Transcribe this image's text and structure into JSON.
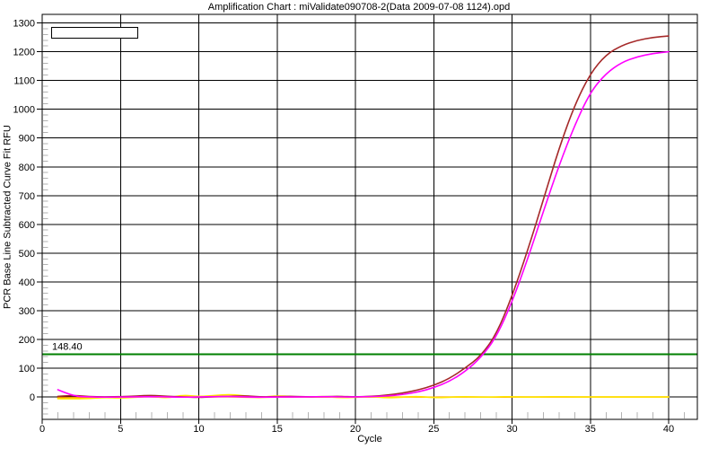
{
  "window": {
    "title": "Amplification Chart : miValidate090708-2(Data 2009-07-08 1124).opd"
  },
  "chart_data": {
    "type": "line",
    "title": "Amplification Chart : miValidate090708-2(Data 2009-07-08 1124).opd",
    "xlabel": "Cycle",
    "ylabel": "PCR Base Line Subtracted Curve Fit RFU",
    "xlim": [
      0,
      41.83
    ],
    "ylim": [
      -78,
      1330
    ],
    "x_ticks": [
      0,
      5,
      10,
      15,
      20,
      25,
      30,
      35,
      40
    ],
    "y_ticks": [
      0,
      100,
      200,
      300,
      400,
      500,
      600,
      700,
      800,
      900,
      1000,
      1100,
      1200,
      1300
    ],
    "x_minor_step": 1,
    "y_minor_step": 20,
    "grid": true,
    "legend_position": "top-left",
    "legend_entries": [],
    "x": [
      1,
      2,
      3,
      4,
      5,
      6,
      7,
      8,
      9,
      10,
      11,
      12,
      13,
      14,
      15,
      16,
      17,
      18,
      19,
      20,
      21,
      22,
      23,
      24,
      25,
      26,
      27,
      28,
      29,
      30,
      31,
      32,
      33,
      34,
      35,
      36,
      37,
      38,
      39,
      40
    ],
    "series": [
      {
        "name": "amplifying-well-dark-red",
        "color": "#a52929",
        "values": [
          2,
          6,
          1,
          0,
          1,
          3,
          6,
          2,
          0,
          -2,
          1,
          2,
          4,
          0,
          1,
          2,
          0,
          1,
          2,
          0,
          2,
          6,
          13,
          24,
          40,
          64,
          100,
          142,
          218,
          350,
          510,
          685,
          865,
          1015,
          1125,
          1190,
          1222,
          1240,
          1250,
          1255
        ]
      },
      {
        "name": "amplifying-well-magenta",
        "color": "#ff00ff",
        "values": [
          25,
          2,
          0,
          -1,
          0,
          0,
          1,
          0,
          -1,
          0,
          1,
          2,
          0,
          -1,
          0,
          0,
          0,
          1,
          0,
          0,
          1,
          3,
          8,
          17,
          32,
          54,
          88,
          136,
          208,
          330,
          480,
          645,
          805,
          945,
          1060,
          1125,
          1163,
          1183,
          1194,
          1200
        ]
      },
      {
        "name": "flat-well-yellow",
        "color": "#ffe600",
        "values": [
          -6,
          -7,
          -5,
          -2,
          -4,
          -1,
          2,
          -4,
          7,
          1,
          5,
          9,
          3,
          -1,
          4,
          1,
          -1,
          2,
          -3,
          -1,
          1,
          -3,
          -1,
          2,
          -3,
          -1,
          1,
          -1,
          0,
          1,
          -1,
          0,
          1,
          0,
          0,
          0,
          0,
          0,
          0,
          0
        ]
      },
      {
        "name": "flat-well-orange",
        "color": "#ff9900",
        "values": [
          -3,
          -2,
          -3,
          -1,
          -2,
          0,
          1,
          -1,
          0,
          1,
          0,
          1,
          -1,
          -2,
          0,
          -1,
          0,
          0,
          -1,
          0,
          0,
          -1,
          0,
          0,
          -1,
          0,
          0,
          0,
          -1,
          0,
          0,
          0,
          0,
          0,
          0,
          0,
          0,
          0,
          0,
          0
        ]
      }
    ],
    "threshold": {
      "value": 148.4,
      "label": "148.40",
      "color": "#007f00"
    }
  },
  "colors": {
    "background": "#ffffff",
    "grid": "#000000",
    "minor_tick": "#b3b3b3",
    "frame": "#000000",
    "threshold": "#007f00"
  }
}
